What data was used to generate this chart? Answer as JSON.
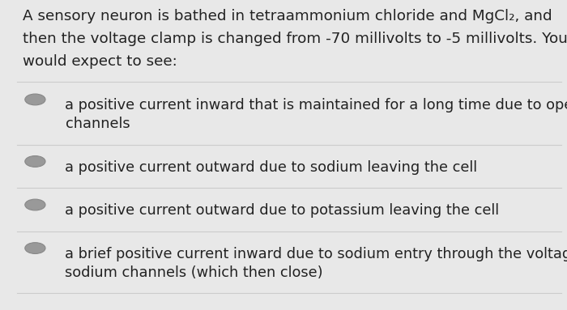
{
  "background_color": "#e8e8e8",
  "question_lines": [
    "A sensory neuron is bathed in tetraammonium chloride and MgCl₂, and",
    "then the voltage clamp is changed from -70 millivolts to -5 millivolts. You",
    "would expect to see:"
  ],
  "options": [
    [
      "a positive current inward that is maintained for a long time due to open sodium",
      "channels"
    ],
    [
      "a positive current outward due to sodium leaving the cell"
    ],
    [
      "a positive current outward due to potassium leaving the cell"
    ],
    [
      "a brief positive current inward due to sodium entry through the voltage-gated",
      "sodium channels (which then close)"
    ]
  ],
  "circle_color": "#999999",
  "circle_edge_color": "#888888",
  "divider_color": "#cccccc",
  "text_color": "#222222",
  "question_fontsize": 13.2,
  "option_fontsize": 12.8
}
